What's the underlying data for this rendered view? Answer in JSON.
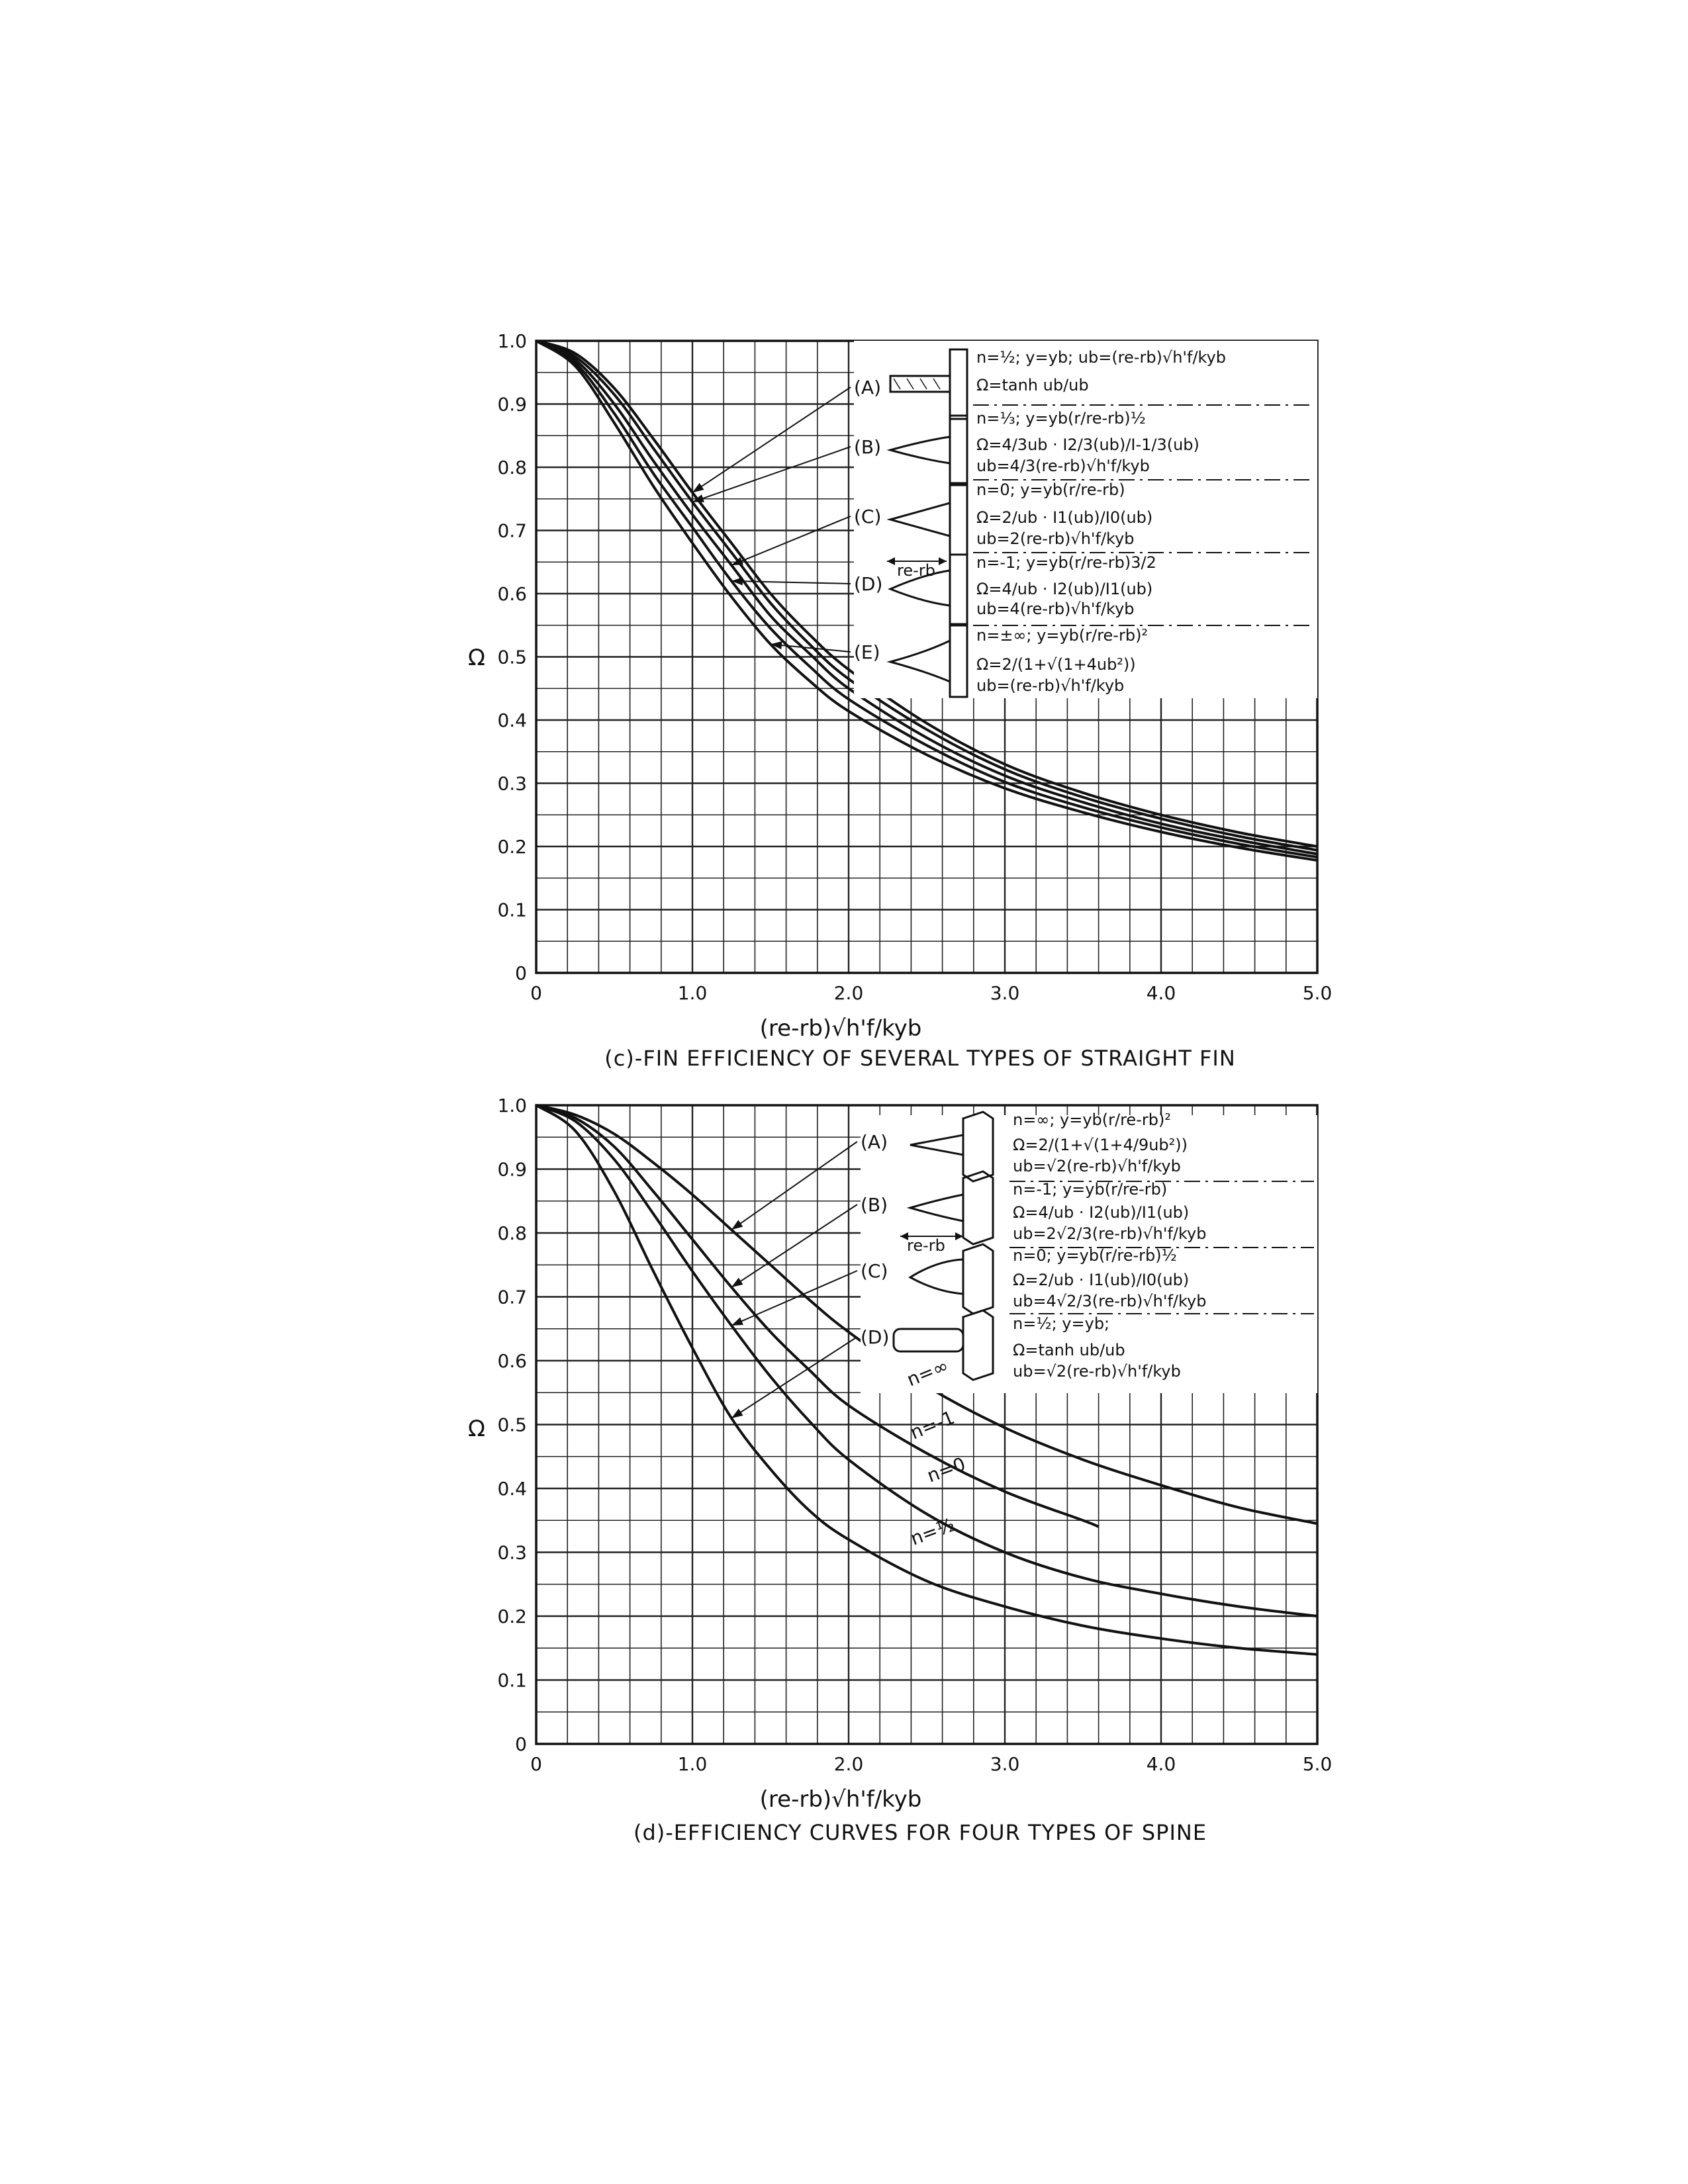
{
  "figure": {
    "charts": [
      {
        "id": "c",
        "caption": "(c)-FIN EFFICIENCY OF SEVERAL TYPES OF STRAIGHT FIN",
        "xlabel": "(re-rb)√h'f/kyb",
        "ylabel": "Ω",
        "xticks": [
          "0",
          "1.0",
          "2.0",
          "3.0",
          "4.0",
          "5.0"
        ],
        "yticks": [
          "0",
          "0.1",
          "0.2",
          "0.3",
          "0.4",
          "0.5",
          "0.6",
          "0.7",
          "0.8",
          "0.9",
          "1.0"
        ],
        "legend": [
          {
            "tag": "(A)",
            "line1": "n=½; y=yb; ub=(re-rb)√h'f/kyb",
            "line2": "Ω=tanh ub/ub",
            "line3": ""
          },
          {
            "tag": "(B)",
            "line1": "n=⅓; y=yb(r/re-rb)½",
            "line2": "Ω=4/3ub · I2/3(ub)/I-1/3(ub)",
            "line3": "ub=4/3(re-rb)√h'f/kyb"
          },
          {
            "tag": "(C)",
            "line1": "n=0; y=yb(r/re-rb)",
            "line2": "Ω=2/ub · I1(ub)/I0(ub)",
            "line3": "ub=2(re-rb)√h'f/kyb"
          },
          {
            "tag": "(D)",
            "line1": "n=-1; y=yb(r/re-rb)3/2",
            "line2": "Ω=4/ub · I2(ub)/I1(ub)",
            "line3": "ub=4(re-rb)√h'f/kyb"
          },
          {
            "tag": "(E)",
            "line1": "n=±∞; y=yb(r/re-rb)²",
            "line2": "Ω=2/(1+√(1+4ub²))",
            "line3": "ub=(re-rb)√h'f/kyb"
          }
        ],
        "dimension_label": "re-rb"
      },
      {
        "id": "d",
        "caption": "(d)-EFFICIENCY CURVES FOR FOUR TYPES OF SPINE",
        "xlabel": "(re-rb)√h'f/kyb",
        "ylabel": "Ω",
        "xticks": [
          "0",
          "1.0",
          "2.0",
          "3.0",
          "4.0",
          "5.0"
        ],
        "yticks": [
          "0",
          "0.1",
          "0.2",
          "0.3",
          "0.4",
          "0.5",
          "0.6",
          "0.7",
          "0.8",
          "0.9",
          "1.0"
        ],
        "legend": [
          {
            "tag": "(A)",
            "line1": "n=∞; y=yb(r/re-rb)²",
            "line2": "Ω=2/(1+√(1+4/9ub²))",
            "line3": "ub=√2(re-rb)√h'f/kyb"
          },
          {
            "tag": "(B)",
            "line1": "n=-1; y=yb(r/re-rb)",
            "line2": "Ω=4/ub · I2(ub)/I1(ub)",
            "line3": "ub=2√2/3(re-rb)√h'f/kyb"
          },
          {
            "tag": "(C)",
            "line1": "n=0; y=yb(r/re-rb)½",
            "line2": "Ω=2/ub · I1(ub)/I0(ub)",
            "line3": "ub=4√2/3(re-rb)√h'f/kyb"
          },
          {
            "tag": "(D)",
            "line1": "n=½; y=yb;",
            "line2": "Ω=tanh ub/ub",
            "line3": "ub=√2(re-rb)√h'f/kyb"
          }
        ],
        "dimension_label": "re-rb",
        "curve_labels": [
          "n=∞",
          "n=-1",
          "n=0",
          "n=½"
        ]
      }
    ]
  },
  "chart_data": [
    {
      "type": "line",
      "title": "(c)-FIN EFFICIENCY OF SEVERAL TYPES OF STRAIGHT FIN",
      "xlabel": "(re-rb)√h'f/kyb",
      "ylabel": "Ω",
      "xlim": [
        0,
        5
      ],
      "ylim": [
        0,
        1
      ],
      "grid": true,
      "legend_position": "top-right",
      "x": [
        0,
        0.25,
        0.5,
        0.75,
        1.0,
        1.25,
        1.5,
        1.75,
        2.0,
        2.5,
        3.0,
        3.5,
        4.0,
        4.5,
        5.0
      ],
      "series": [
        {
          "name": "(A)",
          "values": [
            1.0,
            0.98,
            0.925,
            0.845,
            0.76,
            0.68,
            0.6,
            0.535,
            0.48,
            0.395,
            0.33,
            0.285,
            0.25,
            0.222,
            0.2
          ]
        },
        {
          "name": "(B)",
          "values": [
            1.0,
            0.975,
            0.915,
            0.83,
            0.745,
            0.665,
            0.585,
            0.52,
            0.465,
            0.385,
            0.322,
            0.278,
            0.244,
            0.216,
            0.194
          ]
        },
        {
          "name": "(C)",
          "values": [
            1.0,
            0.97,
            0.9,
            0.81,
            0.725,
            0.645,
            0.565,
            0.505,
            0.45,
            0.372,
            0.312,
            0.27,
            0.236,
            0.21,
            0.188
          ]
        },
        {
          "name": "(D)",
          "values": [
            1.0,
            0.965,
            0.885,
            0.79,
            0.705,
            0.62,
            0.545,
            0.485,
            0.433,
            0.36,
            0.302,
            0.262,
            0.23,
            0.204,
            0.183
          ]
        },
        {
          "name": "(E)",
          "values": [
            1.0,
            0.96,
            0.87,
            0.77,
            0.68,
            0.595,
            0.52,
            0.462,
            0.414,
            0.345,
            0.292,
            0.254,
            0.223,
            0.198,
            0.178
          ]
        }
      ]
    },
    {
      "type": "line",
      "title": "(d)-EFFICIENCY CURVES FOR FOUR TYPES OF SPINE",
      "xlabel": "(re-rb)√h'f/kyb",
      "ylabel": "Ω",
      "xlim": [
        0,
        5
      ],
      "ylim": [
        0,
        1
      ],
      "grid": true,
      "legend_position": "top-right",
      "series": [
        {
          "name": "n=∞",
          "x": [
            0,
            0.25,
            0.5,
            0.75,
            1.0,
            1.25,
            1.5,
            1.75,
            2.0,
            2.5,
            3.0,
            3.5,
            4.0,
            4.5,
            5.0
          ],
          "values": [
            1.0,
            0.985,
            0.955,
            0.91,
            0.86,
            0.805,
            0.75,
            0.695,
            0.645,
            0.56,
            0.495,
            0.445,
            0.405,
            0.37,
            0.345
          ]
        },
        {
          "name": "n=-1",
          "x": [
            0,
            0.25,
            0.5,
            0.75,
            1.0,
            1.25,
            1.5,
            1.75,
            2.0,
            2.5,
            3.0,
            3.5,
            3.6
          ],
          "values": [
            1.0,
            0.98,
            0.935,
            0.865,
            0.79,
            0.715,
            0.645,
            0.585,
            0.53,
            0.455,
            0.395,
            0.35,
            0.34
          ]
        },
        {
          "name": "n=0",
          "x": [
            0,
            0.25,
            0.5,
            0.75,
            1.0,
            1.25,
            1.5,
            1.75,
            2.0,
            2.5,
            3.0,
            3.5,
            4.0,
            4.5,
            5.0
          ],
          "values": [
            1.0,
            0.975,
            0.915,
            0.83,
            0.74,
            0.655,
            0.575,
            0.505,
            0.445,
            0.36,
            0.3,
            0.26,
            0.235,
            0.215,
            0.2
          ]
        },
        {
          "name": "n=½",
          "x": [
            0,
            0.25,
            0.5,
            0.75,
            1.0,
            1.25,
            1.5,
            1.75,
            2.0,
            2.5,
            3.0,
            3.5,
            4.0,
            4.5,
            5.0
          ],
          "values": [
            1.0,
            0.96,
            0.865,
            0.74,
            0.62,
            0.51,
            0.43,
            0.365,
            0.32,
            0.255,
            0.215,
            0.185,
            0.165,
            0.15,
            0.14
          ]
        }
      ]
    }
  ]
}
